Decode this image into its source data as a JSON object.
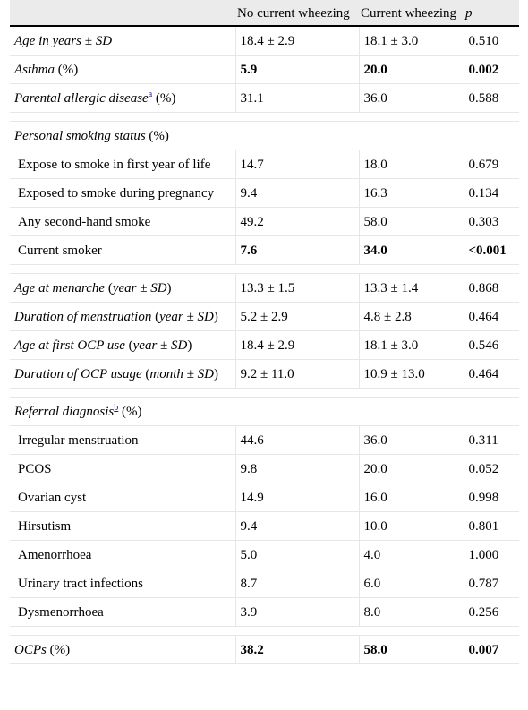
{
  "header": {
    "col1": "",
    "col2": "No current wheezing",
    "col3": "Current wheezing",
    "col4": "p"
  },
  "rows": {
    "age": {
      "label": "Age in years ± SD",
      "no": "18.4 ± 2.9",
      "cur": "18.1 ± 3.0",
      "p": "0.510"
    },
    "asthma": {
      "label_it": "Asthma",
      "label_rest": " (%)",
      "no": "5.9",
      "cur": "20.0",
      "p": "0.002"
    },
    "parental": {
      "label_it": "Parental allergic disease",
      "note": "a",
      "label_rest": " (%)",
      "no": "31.1",
      "cur": "36.0",
      "p": "0.588"
    },
    "smoking_head": {
      "label_it": "Personal smoking status",
      "label_rest": " (%)"
    },
    "first_year": {
      "label": "Expose to smoke in first year of life",
      "no": "14.7",
      "cur": "18.0",
      "p": "0.679"
    },
    "pregnancy": {
      "label": "Exposed to smoke during pregnancy",
      "no": "9.4",
      "cur": "16.3",
      "p": "0.134"
    },
    "second_hand": {
      "label": "Any second-hand smoke",
      "no": "49.2",
      "cur": "58.0",
      "p": "0.303"
    },
    "current_smoker": {
      "label": "Current smoker",
      "no": "7.6",
      "cur": "34.0",
      "p": "<0.001"
    },
    "menarche": {
      "label_it1": "Age at menarche",
      "label_mid": " (",
      "label_it2": "year ± SD",
      "label_end": ")",
      "no": "13.3 ± 1.5",
      "cur": "13.3 ± 1.4",
      "p": "0.868"
    },
    "menstruation": {
      "label_it1": "Duration of menstruation",
      "label_mid": " (",
      "label_it2": "year ± SD",
      "label_end": ")",
      "no": "5.2 ± 2.9",
      "cur": "4.8 ± 2.8",
      "p": "0.464"
    },
    "ocp_first": {
      "label_it1": "Age at first OCP use",
      "label_mid": " (",
      "label_it2": "year ± SD",
      "label_end": ")",
      "no": "18.4 ± 2.9",
      "cur": "18.1 ± 3.0",
      "p": "0.546"
    },
    "ocp_duration": {
      "label_it1": "Duration of OCP usage",
      "label_mid": " (",
      "label_it2": "month ± SD",
      "label_end": ")",
      "no": "9.2 ± 11.0",
      "cur": "10.9 ± 13.0",
      "p": "0.464"
    },
    "referral_head": {
      "label_it": "Referral diagnosis",
      "note": "b",
      "label_rest": " (%)"
    },
    "irregular": {
      "label": "Irregular menstruation",
      "no": "44.6",
      "cur": "36.0",
      "p": "0.311"
    },
    "pcos": {
      "label": "PCOS",
      "no": "9.8",
      "cur": "20.0",
      "p": "0.052"
    },
    "ovarian": {
      "label": "Ovarian cyst",
      "no": "14.9",
      "cur": "16.0",
      "p": "0.998"
    },
    "hirsutism": {
      "label": "Hirsutism",
      "no": "9.4",
      "cur": "10.0",
      "p": "0.801"
    },
    "amenorrhoea": {
      "label": "Amenorrhoea",
      "no": "5.0",
      "cur": "4.0",
      "p": "1.000"
    },
    "uti": {
      "label": "Urinary tract infections",
      "no": "8.7",
      "cur": "6.0",
      "p": "0.787"
    },
    "dysmenorrhoea": {
      "label": "Dysmenorrhoea",
      "no": "3.9",
      "cur": "8.0",
      "p": "0.256"
    },
    "ocps": {
      "label_it": "OCPs",
      "label_rest": " (%)",
      "no": "38.2",
      "cur": "58.0",
      "p": "0.007"
    }
  }
}
